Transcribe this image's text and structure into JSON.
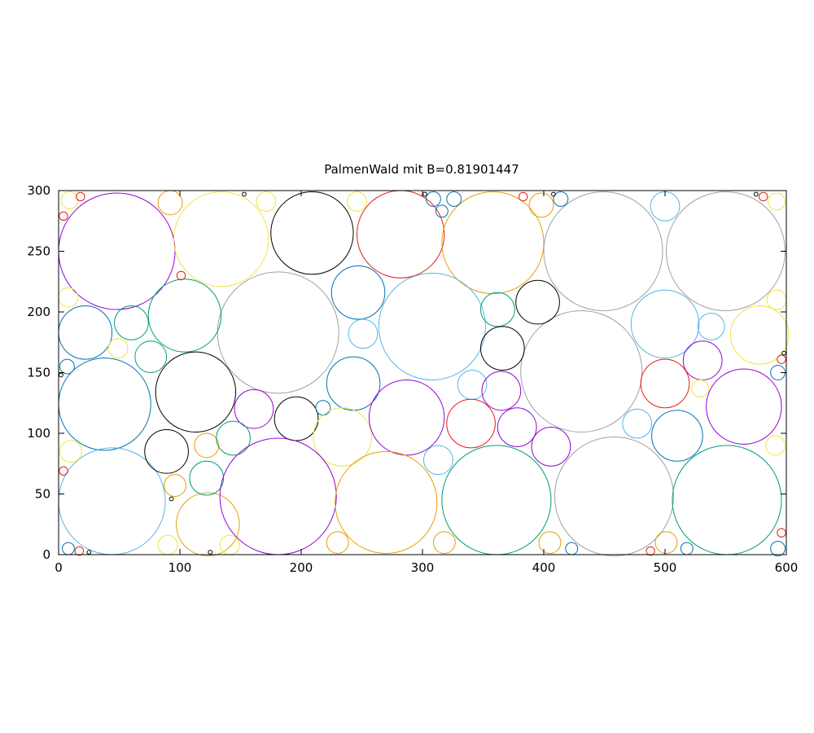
{
  "chart_data": {
    "type": "scatter",
    "title": "PalmenWald mit B=0.81901447",
    "xlabel": "",
    "ylabel": "",
    "xlim": [
      0,
      600
    ],
    "ylim": [
      0,
      300
    ],
    "x_ticks": [
      0,
      100,
      200,
      300,
      400,
      500,
      600
    ],
    "y_ticks": [
      0,
      50,
      100,
      150,
      200,
      250,
      300
    ],
    "grid": false,
    "legend": "none",
    "colors": {
      "purple": "#9400d3",
      "green": "#009e73",
      "cyan": "#56b4e9",
      "orange": "#e69f00",
      "yellow": "#f0e442",
      "blue": "#0072b2",
      "red": "#e51e10",
      "black": "#000000",
      "gray": "#a0a0a0"
    },
    "circles": [
      {
        "x": 48,
        "y": 250,
        "r": 48,
        "color": "purple"
      },
      {
        "x": 134,
        "y": 260,
        "r": 39,
        "color": "yellow"
      },
      {
        "x": 209,
        "y": 265,
        "r": 34,
        "color": "black"
      },
      {
        "x": 282,
        "y": 264,
        "r": 36,
        "color": "red"
      },
      {
        "x": 358,
        "y": 257,
        "r": 42,
        "color": "orange"
      },
      {
        "x": 449,
        "y": 250,
        "r": 49,
        "color": "gray"
      },
      {
        "x": 550,
        "y": 250,
        "r": 49,
        "color": "gray"
      },
      {
        "x": 181,
        "y": 183,
        "r": 50,
        "color": "gray"
      },
      {
        "x": 308,
        "y": 188,
        "r": 44,
        "color": "cyan"
      },
      {
        "x": 431,
        "y": 151,
        "r": 50,
        "color": "gray"
      },
      {
        "x": 104,
        "y": 197,
        "r": 30,
        "color": "green"
      },
      {
        "x": 22,
        "y": 183,
        "r": 22,
        "color": "blue"
      },
      {
        "x": 60,
        "y": 191,
        "r": 14,
        "color": "green"
      },
      {
        "x": 76,
        "y": 163,
        "r": 13,
        "color": "green"
      },
      {
        "x": 49,
        "y": 170,
        "r": 8,
        "color": "yellow"
      },
      {
        "x": 38,
        "y": 124,
        "r": 38,
        "color": "blue"
      },
      {
        "x": 113,
        "y": 134,
        "r": 33,
        "color": "black"
      },
      {
        "x": 161,
        "y": 120,
        "r": 16,
        "color": "purple"
      },
      {
        "x": 196,
        "y": 112,
        "r": 18,
        "color": "black"
      },
      {
        "x": 218,
        "y": 121,
        "r": 6,
        "color": "blue"
      },
      {
        "x": 247,
        "y": 216,
        "r": 22,
        "color": "blue"
      },
      {
        "x": 251,
        "y": 182,
        "r": 12,
        "color": "cyan"
      },
      {
        "x": 243,
        "y": 141,
        "r": 22,
        "color": "blue"
      },
      {
        "x": 234,
        "y": 97,
        "r": 24,
        "color": "yellow"
      },
      {
        "x": 287,
        "y": 113,
        "r": 31,
        "color": "purple"
      },
      {
        "x": 341,
        "y": 140,
        "r": 12,
        "color": "cyan"
      },
      {
        "x": 362,
        "y": 202,
        "r": 14,
        "color": "green"
      },
      {
        "x": 395,
        "y": 208,
        "r": 18,
        "color": "black"
      },
      {
        "x": 366,
        "y": 170,
        "r": 18,
        "color": "black"
      },
      {
        "x": 365,
        "y": 135,
        "r": 16,
        "color": "purple"
      },
      {
        "x": 340,
        "y": 108,
        "r": 20,
        "color": "red"
      },
      {
        "x": 378,
        "y": 105,
        "r": 16,
        "color": "purple"
      },
      {
        "x": 406,
        "y": 89,
        "r": 16,
        "color": "purple"
      },
      {
        "x": 313,
        "y": 78,
        "r": 12,
        "color": "cyan"
      },
      {
        "x": 500,
        "y": 190,
        "r": 28,
        "color": "cyan"
      },
      {
        "x": 538,
        "y": 188,
        "r": 11,
        "color": "cyan"
      },
      {
        "x": 578,
        "y": 181,
        "r": 24,
        "color": "yellow"
      },
      {
        "x": 531,
        "y": 160,
        "r": 16,
        "color": "purple"
      },
      {
        "x": 500,
        "y": 141,
        "r": 20,
        "color": "red"
      },
      {
        "x": 565,
        "y": 122,
        "r": 31,
        "color": "purple"
      },
      {
        "x": 529,
        "y": 137,
        "r": 7,
        "color": "yellow"
      },
      {
        "x": 477,
        "y": 108,
        "r": 12,
        "color": "cyan"
      },
      {
        "x": 510,
        "y": 98,
        "r": 21,
        "color": "blue"
      },
      {
        "x": 44,
        "y": 44,
        "r": 44,
        "color": "cyan"
      },
      {
        "x": 123,
        "y": 25,
        "r": 26,
        "color": "orange"
      },
      {
        "x": 89,
        "y": 85,
        "r": 18,
        "color": "black"
      },
      {
        "x": 122,
        "y": 90,
        "r": 10,
        "color": "orange"
      },
      {
        "x": 144,
        "y": 96,
        "r": 14,
        "color": "green"
      },
      {
        "x": 122,
        "y": 63,
        "r": 14,
        "color": "green"
      },
      {
        "x": 96,
        "y": 57,
        "r": 9,
        "color": "orange"
      },
      {
        "x": 181,
        "y": 48,
        "r": 48,
        "color": "purple"
      },
      {
        "x": 270,
        "y": 43,
        "r": 42,
        "color": "orange"
      },
      {
        "x": 361,
        "y": 45,
        "r": 45,
        "color": "green"
      },
      {
        "x": 458,
        "y": 48,
        "r": 49,
        "color": "gray"
      },
      {
        "x": 551,
        "y": 45,
        "r": 45,
        "color": "green"
      },
      {
        "x": 10,
        "y": 85,
        "r": 9,
        "color": "yellow"
      },
      {
        "x": 8,
        "y": 212,
        "r": 8,
        "color": "yellow"
      },
      {
        "x": 7,
        "y": 155,
        "r": 6,
        "color": "blue"
      },
      {
        "x": 8,
        "y": 5,
        "r": 5,
        "color": "blue"
      },
      {
        "x": 90,
        "y": 8,
        "r": 8,
        "color": "yellow"
      },
      {
        "x": 141,
        "y": 8,
        "r": 8,
        "color": "yellow"
      },
      {
        "x": 230,
        "y": 10,
        "r": 9,
        "color": "orange"
      },
      {
        "x": 318,
        "y": 10,
        "r": 9,
        "color": "orange"
      },
      {
        "x": 405,
        "y": 10,
        "r": 9,
        "color": "orange"
      },
      {
        "x": 501,
        "y": 10,
        "r": 9,
        "color": "orange"
      },
      {
        "x": 591,
        "y": 90,
        "r": 8,
        "color": "yellow"
      },
      {
        "x": 592,
        "y": 210,
        "r": 8,
        "color": "yellow"
      },
      {
        "x": 592,
        "y": 291,
        "r": 7,
        "color": "yellow"
      },
      {
        "x": 9,
        "y": 292,
        "r": 7,
        "color": "yellow"
      },
      {
        "x": 92,
        "y": 290,
        "r": 10,
        "color": "orange"
      },
      {
        "x": 171,
        "y": 291,
        "r": 8,
        "color": "yellow"
      },
      {
        "x": 246,
        "y": 291,
        "r": 8,
        "color": "yellow"
      },
      {
        "x": 398,
        "y": 288,
        "r": 10,
        "color": "orange"
      },
      {
        "x": 500,
        "y": 287,
        "r": 12,
        "color": "cyan"
      },
      {
        "x": 309,
        "y": 293,
        "r": 6,
        "color": "blue"
      },
      {
        "x": 326,
        "y": 293,
        "r": 6,
        "color": "blue"
      },
      {
        "x": 316,
        "y": 283,
        "r": 5,
        "color": "blue"
      },
      {
        "x": 414,
        "y": 293,
        "r": 6,
        "color": "blue"
      },
      {
        "x": 423,
        "y": 5,
        "r": 5,
        "color": "blue"
      },
      {
        "x": 518,
        "y": 5,
        "r": 5,
        "color": "blue"
      },
      {
        "x": 593,
        "y": 5,
        "r": 6,
        "color": "blue"
      },
      {
        "x": 593,
        "y": 150,
        "r": 6,
        "color": "blue"
      },
      {
        "x": 18,
        "y": 295,
        "r": 3.5,
        "color": "red"
      },
      {
        "x": 4,
        "y": 279,
        "r": 3.5,
        "color": "red"
      },
      {
        "x": 101,
        "y": 230,
        "r": 3.5,
        "color": "red"
      },
      {
        "x": 4,
        "y": 69,
        "r": 3.5,
        "color": "red"
      },
      {
        "x": 17,
        "y": 3,
        "r": 3.5,
        "color": "red"
      },
      {
        "x": 383,
        "y": 295,
        "r": 3.5,
        "color": "red"
      },
      {
        "x": 581,
        "y": 295,
        "r": 3.5,
        "color": "red"
      },
      {
        "x": 596,
        "y": 161,
        "r": 3.5,
        "color": "red"
      },
      {
        "x": 596,
        "y": 18,
        "r": 3.5,
        "color": "red"
      },
      {
        "x": 488,
        "y": 3,
        "r": 3.5,
        "color": "red"
      },
      {
        "x": 153,
        "y": 297,
        "r": 1.6,
        "color": "black"
      },
      {
        "x": 302,
        "y": 297,
        "r": 1.6,
        "color": "black"
      },
      {
        "x": 408,
        "y": 297,
        "r": 1.6,
        "color": "black"
      },
      {
        "x": 575,
        "y": 297,
        "r": 1.6,
        "color": "black"
      },
      {
        "x": 598,
        "y": 166,
        "r": 1.6,
        "color": "black"
      },
      {
        "x": 2,
        "y": 148,
        "r": 1.6,
        "color": "black"
      },
      {
        "x": 93,
        "y": 46,
        "r": 1.6,
        "color": "black"
      },
      {
        "x": 25,
        "y": 2,
        "r": 1.6,
        "color": "black"
      },
      {
        "x": 125,
        "y": 2,
        "r": 1.6,
        "color": "black"
      }
    ]
  }
}
